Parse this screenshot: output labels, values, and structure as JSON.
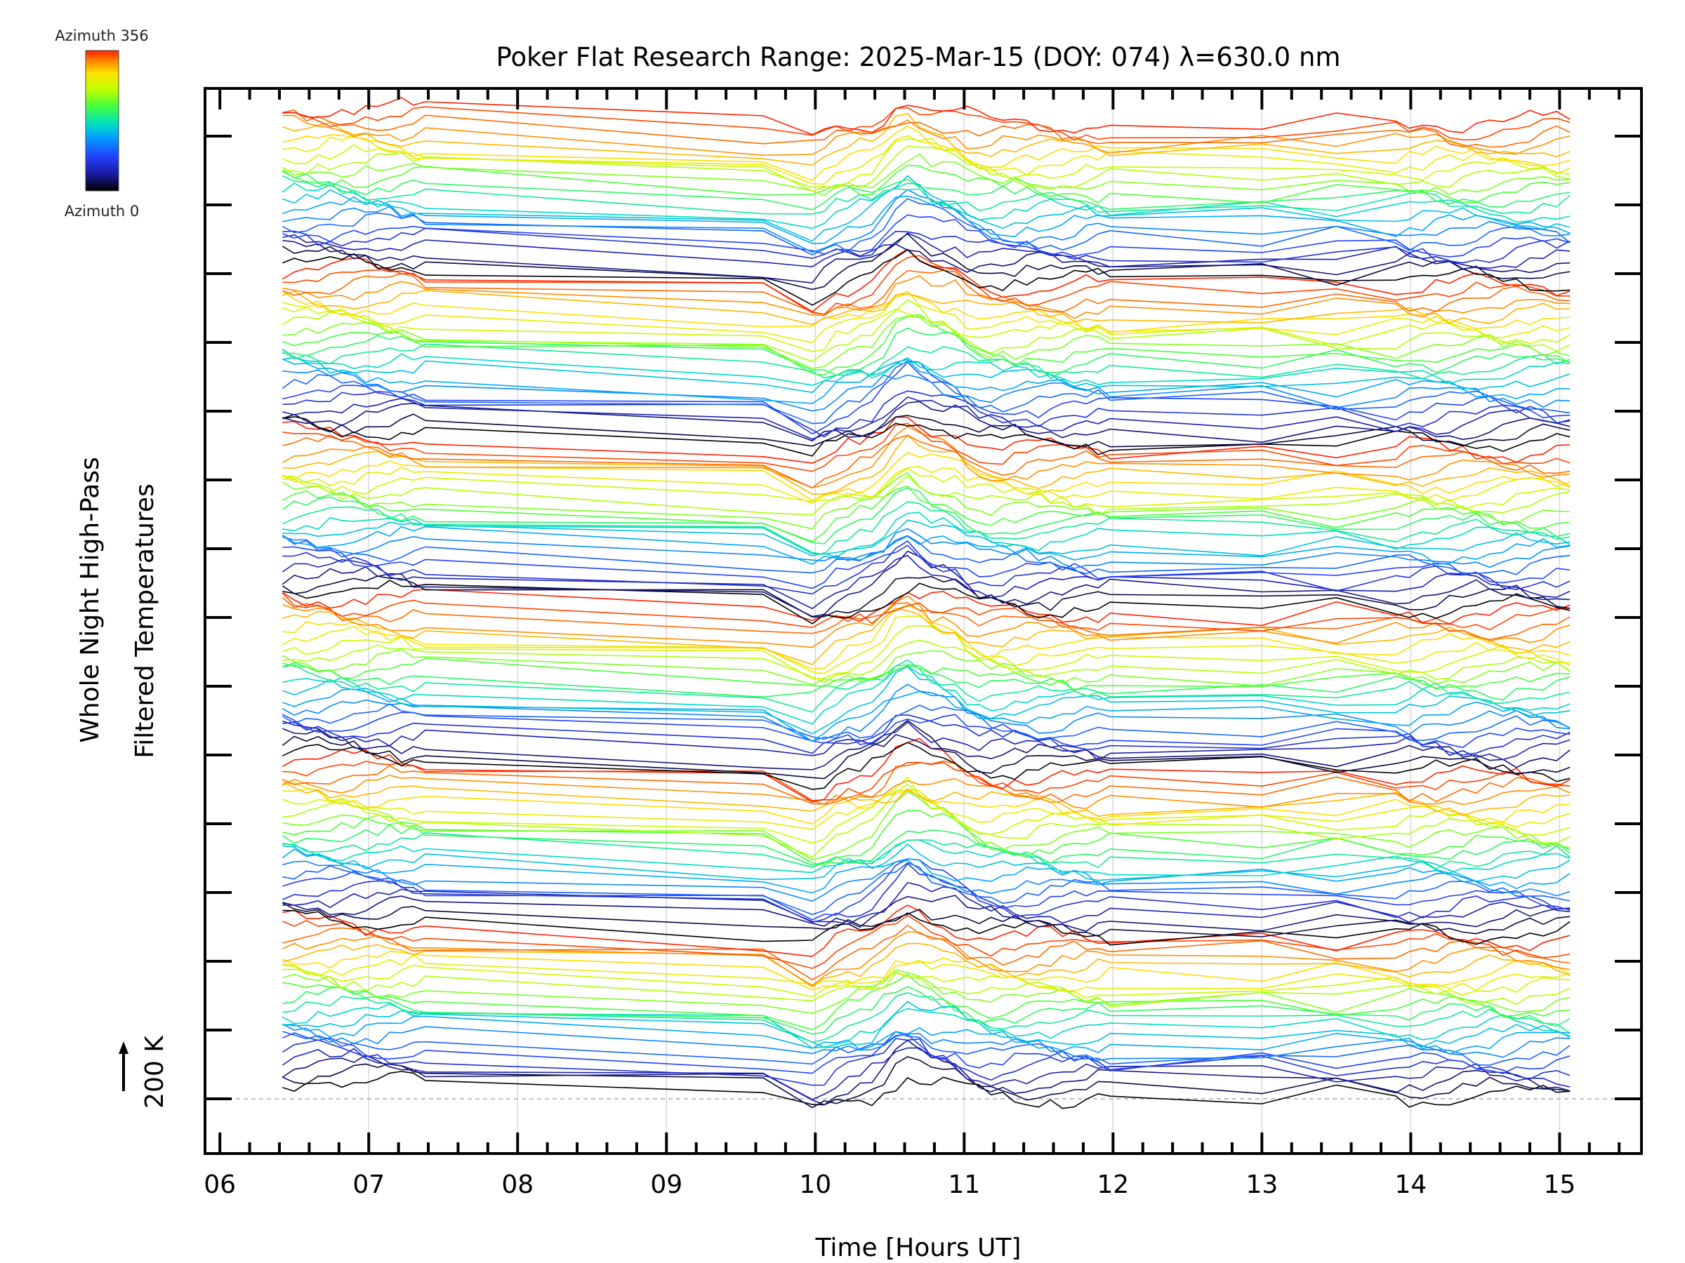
{
  "chart_data": {
    "type": "line",
    "title": "Poker Flat Research Range: 2025-Mar-15 (DOY: 074) λ=630.0 nm",
    "xlabel": "Time [Hours UT]",
    "ylabel_line1": "Whole Night High-Pass",
    "ylabel_line2": "Filtered Temperatures",
    "x_tick_labels": [
      "06",
      "07",
      "08",
      "09",
      "10",
      "11",
      "12",
      "13",
      "14",
      "15"
    ],
    "x_ticks": [
      6,
      7,
      8,
      9,
      10,
      11,
      12,
      13,
      14,
      15
    ],
    "xlim": [
      5.9,
      15.55
    ],
    "scale_bar_label": "200 K",
    "colorbar": {
      "top_label": "Azimuth 356",
      "bottom_label": "Azimuth 0",
      "min": 0,
      "max": 356
    },
    "color_stops": [
      "#000000",
      "#1a1aa0",
      "#2244ff",
      "#00a0ff",
      "#00e0c0",
      "#40ff40",
      "#c0ff00",
      "#ffe000",
      "#ff8000",
      "#ff2000"
    ],
    "series_count": 144,
    "series_x_range": [
      6.42,
      15.08
    ],
    "note": "Stacked, vertically offset high-pass filtered temperature traces (one per azimuth sample), offsets of 20 K between traces."
  }
}
